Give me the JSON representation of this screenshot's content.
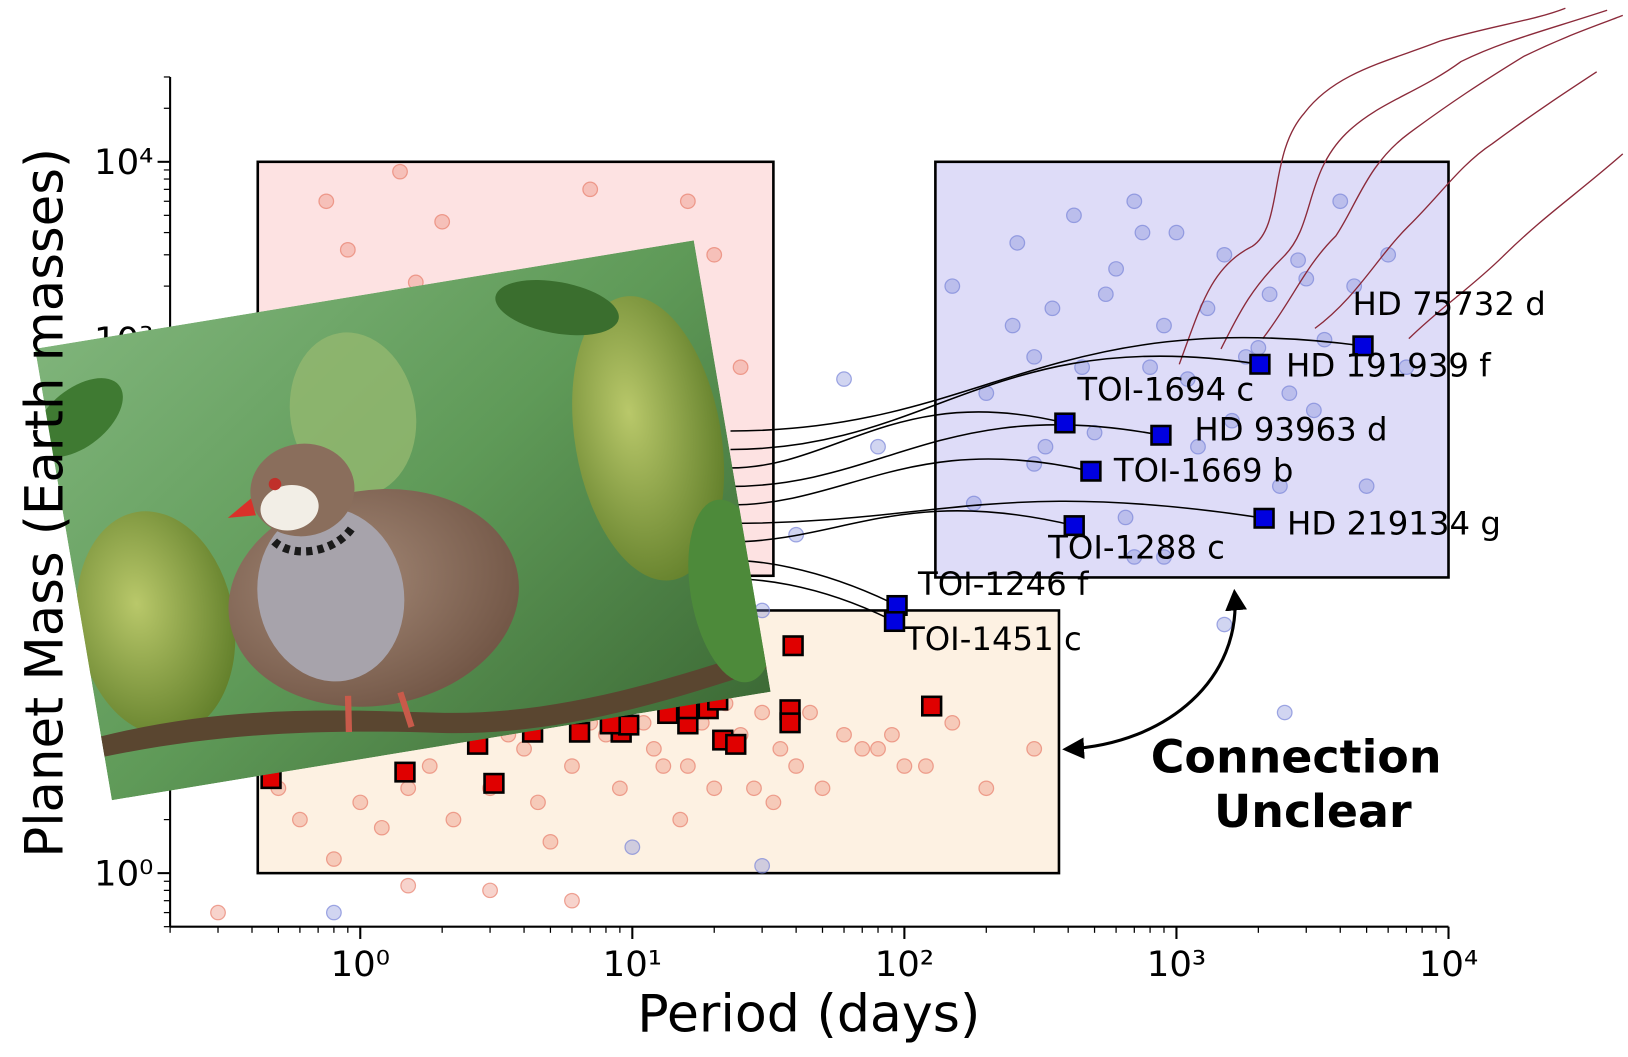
{
  "chart_data": {
    "type": "scatter",
    "x_label": "Period (days)",
    "y_label": "Planet Mass (Earth masses)",
    "xscale": "log",
    "yscale": "log",
    "xlim": [
      0.2,
      10000
    ],
    "ylim": [
      0.5,
      30000
    ],
    "xticks": [
      {
        "value": 1,
        "label": "10⁰"
      },
      {
        "value": 10,
        "label": "10¹"
      },
      {
        "value": 100,
        "label": "10²"
      },
      {
        "value": 1000,
        "label": "10³"
      },
      {
        "value": 10000,
        "label": "10⁴"
      }
    ],
    "yticks": [
      {
        "value": 1,
        "label": "10⁰"
      },
      {
        "value": 1000,
        "label": "10³"
      },
      {
        "value": 10000,
        "label": "10⁴"
      }
    ],
    "minor_ticks": true,
    "regions": [
      {
        "xrange": [
          0.42,
          33
        ],
        "yrange": [
          47,
          10000
        ],
        "color": "#fde2e2"
      },
      {
        "xrange": [
          130,
          10000
        ],
        "yrange": [
          46,
          10000
        ],
        "color": "#dedcf8"
      },
      {
        "xrange": [
          0.42,
          370
        ],
        "yrange": [
          1,
          30
        ],
        "color": "#fdf1e2"
      }
    ],
    "series": [
      {
        "marker": "circle",
        "color": "#7a86d8",
        "x": [
          150,
          200,
          260,
          300,
          350,
          420,
          500,
          600,
          700,
          800,
          900,
          1000,
          1200,
          1500,
          1800,
          2200,
          2600,
          3000,
          3500,
          4000,
          5000,
          6000,
          7000,
          180,
          250,
          330,
          450,
          550,
          650,
          750,
          1100,
          1300,
          1600,
          2000,
          2400,
          2800,
          3200,
          4500,
          60,
          80,
          40,
          30,
          20,
          1500,
          2500,
          700,
          300,
          900,
          0.8,
          10,
          30
        ],
        "values": [
          2000,
          500,
          3500,
          800,
          1500,
          5000,
          300,
          2500,
          6000,
          700,
          1200,
          4000,
          250,
          3000,
          800,
          1800,
          500,
          2200,
          1000,
          6000,
          150,
          3000,
          700,
          120,
          1200,
          250,
          700,
          1800,
          100,
          4000,
          600,
          1500,
          350,
          900,
          150,
          2800,
          400,
          2000,
          600,
          250,
          80,
          30,
          12,
          25,
          8,
          60,
          200,
          60,
          0.6,
          1.4,
          1.1
        ]
      },
      {
        "marker": "circle",
        "color": "#e8806e",
        "x": [
          0.5,
          0.7,
          1,
          1.3,
          1.8,
          2.5,
          3,
          4,
          5,
          6,
          7,
          8,
          9,
          10,
          12,
          14,
          16,
          18,
          20,
          25,
          30,
          35,
          40,
          50,
          60,
          80,
          100,
          150,
          200,
          300,
          0.6,
          0.9,
          1.5,
          2,
          3.5,
          4.5,
          6.5,
          11,
          13,
          22,
          28,
          45,
          70,
          90,
          120,
          1.2,
          2.2,
          5,
          15,
          33,
          0.75,
          1.4,
          0.9,
          3,
          2,
          1.6,
          7,
          16,
          20,
          25,
          0.3,
          1.5,
          3,
          6,
          0.8
        ],
        "values": [
          3,
          5,
          2.5,
          6,
          4,
          8,
          3,
          5,
          10,
          4,
          7,
          6,
          3,
          9,
          5,
          12,
          4,
          7,
          3,
          6,
          8,
          5,
          4,
          3,
          6,
          5,
          4,
          7,
          3,
          5,
          2,
          8,
          3,
          10,
          6,
          2.5,
          12,
          7,
          4,
          9,
          3,
          8,
          5,
          6,
          4,
          1.8,
          2,
          1.5,
          2,
          2.5,
          6000,
          8800,
          3200,
          1000,
          4600,
          2100,
          7000,
          6000,
          3000,
          700,
          0.6,
          0.85,
          0.8,
          0.7,
          1.2
        ]
      },
      {
        "marker": "square",
        "color": "#e00000",
        "x": [
          39,
          126,
          38,
          38,
          0.47,
          1.46,
          3.1,
          2.7,
          4.3,
          6.4,
          9.1,
          9.7,
          16,
          16,
          19,
          21.5,
          24,
          13.5,
          8.3,
          20.6
        ],
        "values": [
          19,
          8.7,
          8.3,
          7,
          3.4,
          3.7,
          3.2,
          5.3,
          6.2,
          6.2,
          6.2,
          6.8,
          6.9,
          8.4,
          8.4,
          5.6,
          5.3,
          7.9,
          6.9,
          9.4
        ]
      },
      {
        "marker": "square",
        "color": "#0000e0",
        "x": [
          4850,
          2027,
          389,
          877,
          485,
          2100,
          421,
          94,
          92
        ],
        "values": [
          923,
          727,
          340,
          290,
          182,
          99,
          90,
          32,
          26
        ],
        "point_labels": [
          "HD 75732 d",
          "HD 191939 f",
          "TOI-1694 c",
          "HD 93963 d",
          "TOI-1669 b",
          "HD 219134 g",
          "TOI-1288 c",
          "TOI-1246 f",
          "TOI-1451 c"
        ]
      }
    ],
    "annotation": [
      "Connection",
      "Unclear"
    ]
  }
}
